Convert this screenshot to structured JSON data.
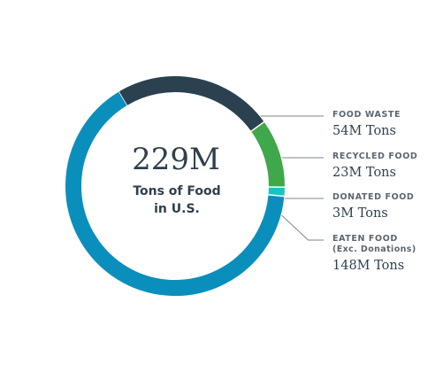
{
  "center": {
    "value": "229M",
    "label_line1": "Tons of Food",
    "label_line2": "in U.S."
  },
  "legend": [
    {
      "name": "FOOD WASTE",
      "note": "",
      "value": "54M Tons"
    },
    {
      "name": "RECYCLED FOOD",
      "note": "",
      "value": "23M Tons"
    },
    {
      "name": "DONATED FOOD",
      "note": "",
      "value": "3M Tons"
    },
    {
      "name": "EATEN FOOD",
      "note": "(Exc. Donations)",
      "value": "148M Tons"
    }
  ],
  "chart_data": {
    "type": "pie",
    "title": "",
    "total_label": "229M",
    "unit": "M Tons",
    "categories": [
      "FOOD WASTE",
      "RECYCLED FOOD",
      "DONATED FOOD",
      "EATEN FOOD (Exc. Donations)"
    ],
    "values": [
      54,
      23,
      3,
      148
    ],
    "colors": [
      "#2c4150",
      "#3ea84a",
      "#19c3c0",
      "#0a8fbc"
    ],
    "legend_position": "right"
  }
}
